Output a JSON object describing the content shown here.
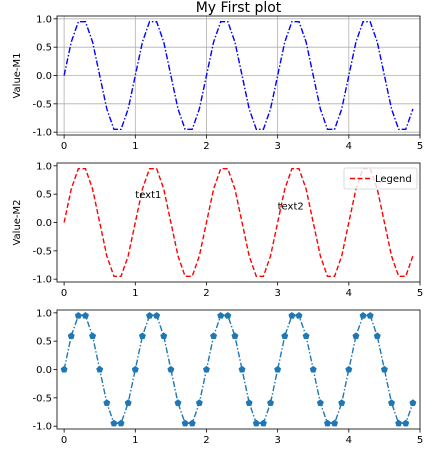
{
  "chart_data": [
    {
      "type": "line",
      "title": "My First plot",
      "xlabel": "",
      "ylabel": "Value-M1",
      "xlim": [
        -0.1,
        5.0
      ],
      "ylim": [
        -1.05,
        1.05
      ],
      "xticks": [
        "0",
        "1",
        "2",
        "3",
        "4",
        "5"
      ],
      "yticks": [
        "-1.0",
        "-0.5",
        "0.0",
        "0.5",
        "1.0"
      ],
      "grid": true,
      "series": [
        {
          "color": "#0000ff",
          "linestyle": "dashdot",
          "marker": "none",
          "x": [
            0,
            0.1,
            0.2,
            0.3,
            0.4,
            0.5,
            0.6,
            0.7,
            0.8,
            0.9,
            1.0,
            1.1,
            1.2,
            1.3,
            1.4,
            1.5,
            1.6,
            1.7,
            1.8,
            1.9,
            2.0,
            2.1,
            2.2,
            2.3,
            2.4,
            2.5,
            2.6,
            2.7,
            2.8,
            2.9,
            3.0,
            3.1,
            3.2,
            3.3,
            3.4,
            3.5,
            3.6,
            3.7,
            3.8,
            3.9,
            4.0,
            4.1,
            4.2,
            4.3,
            4.4,
            4.5,
            4.6,
            4.7,
            4.8,
            4.9
          ],
          "y": [
            0,
            0.59,
            0.95,
            0.95,
            0.59,
            0,
            -0.59,
            -0.95,
            -0.95,
            -0.59,
            0,
            0.59,
            0.95,
            0.95,
            0.59,
            0,
            -0.59,
            -0.95,
            -0.95,
            -0.59,
            0,
            0.59,
            0.95,
            0.95,
            0.59,
            0,
            -0.59,
            -0.95,
            -0.95,
            -0.59,
            0,
            0.59,
            0.95,
            0.95,
            0.59,
            0,
            -0.59,
            -0.95,
            -0.95,
            -0.59,
            0,
            0.59,
            0.95,
            0.95,
            0.59,
            0,
            -0.59,
            -0.95,
            -0.95,
            -0.59
          ]
        }
      ]
    },
    {
      "type": "line",
      "title": "",
      "xlabel": "",
      "ylabel": "Value-M2",
      "xlim": [
        -0.1,
        5.0
      ],
      "ylim": [
        -1.05,
        1.05
      ],
      "xticks": [
        "0",
        "1",
        "2",
        "3",
        "4",
        "5"
      ],
      "yticks": [
        "-1.0",
        "-0.5",
        "0.0",
        "0.5",
        "1.0"
      ],
      "grid": false,
      "legend": "upper-right",
      "annotations": [
        {
          "text": "text1",
          "x": 1.0,
          "y": 0.5
        },
        {
          "text": "text2",
          "x": 3.0,
          "y": 0.3
        }
      ],
      "series": [
        {
          "name": "Legend",
          "color": "#ff0000",
          "linestyle": "dashed",
          "marker": "none",
          "x": [
            0,
            0.1,
            0.2,
            0.3,
            0.4,
            0.5,
            0.6,
            0.7,
            0.8,
            0.9,
            1.0,
            1.1,
            1.2,
            1.3,
            1.4,
            1.5,
            1.6,
            1.7,
            1.8,
            1.9,
            2.0,
            2.1,
            2.2,
            2.3,
            2.4,
            2.5,
            2.6,
            2.7,
            2.8,
            2.9,
            3.0,
            3.1,
            3.2,
            3.3,
            3.4,
            3.5,
            3.6,
            3.7,
            3.8,
            3.9,
            4.0,
            4.1,
            4.2,
            4.3,
            4.4,
            4.5,
            4.6,
            4.7,
            4.8,
            4.9
          ],
          "y": [
            0,
            0.59,
            0.95,
            0.95,
            0.59,
            0,
            -0.59,
            -0.95,
            -0.95,
            -0.59,
            0,
            0.59,
            0.95,
            0.95,
            0.59,
            0,
            -0.59,
            -0.95,
            -0.95,
            -0.59,
            0,
            0.59,
            0.95,
            0.95,
            0.59,
            0,
            -0.59,
            -0.95,
            -0.95,
            -0.59,
            0,
            0.59,
            0.95,
            0.95,
            0.59,
            0,
            -0.59,
            -0.95,
            -0.95,
            -0.59,
            0,
            0.59,
            0.95,
            0.95,
            0.59,
            0,
            -0.59,
            -0.95,
            -0.95,
            -0.59
          ]
        }
      ]
    },
    {
      "type": "line",
      "title": "",
      "xlabel": "",
      "ylabel": "",
      "xlim": [
        -0.1,
        5.0
      ],
      "ylim": [
        -1.05,
        1.05
      ],
      "xticks": [
        "0",
        "1",
        "2",
        "3",
        "4",
        "5"
      ],
      "yticks": [
        "-1.0",
        "-0.5",
        "0.0",
        "0.5",
        "1.0"
      ],
      "grid": false,
      "series": [
        {
          "color": "#1f77b4",
          "linestyle": "dashdot",
          "marker": "pentagon",
          "x": [
            0,
            0.1,
            0.2,
            0.3,
            0.4,
            0.5,
            0.6,
            0.7,
            0.8,
            0.9,
            1.0,
            1.1,
            1.2,
            1.3,
            1.4,
            1.5,
            1.6,
            1.7,
            1.8,
            1.9,
            2.0,
            2.1,
            2.2,
            2.3,
            2.4,
            2.5,
            2.6,
            2.7,
            2.8,
            2.9,
            3.0,
            3.1,
            3.2,
            3.3,
            3.4,
            3.5,
            3.6,
            3.7,
            3.8,
            3.9,
            4.0,
            4.1,
            4.2,
            4.3,
            4.4,
            4.5,
            4.6,
            4.7,
            4.8,
            4.9
          ],
          "y": [
            0,
            0.59,
            0.95,
            0.95,
            0.59,
            0,
            -0.59,
            -0.95,
            -0.95,
            -0.59,
            0,
            0.59,
            0.95,
            0.95,
            0.59,
            0,
            -0.59,
            -0.95,
            -0.95,
            -0.59,
            0,
            0.59,
            0.95,
            0.95,
            0.59,
            0,
            -0.59,
            -0.95,
            -0.95,
            -0.59,
            0,
            0.59,
            0.95,
            0.95,
            0.59,
            0,
            -0.59,
            -0.95,
            -0.95,
            -0.59,
            0,
            0.59,
            0.95,
            0.95,
            0.59,
            0,
            -0.59,
            -0.95,
            -0.95,
            -0.59
          ]
        }
      ]
    }
  ]
}
